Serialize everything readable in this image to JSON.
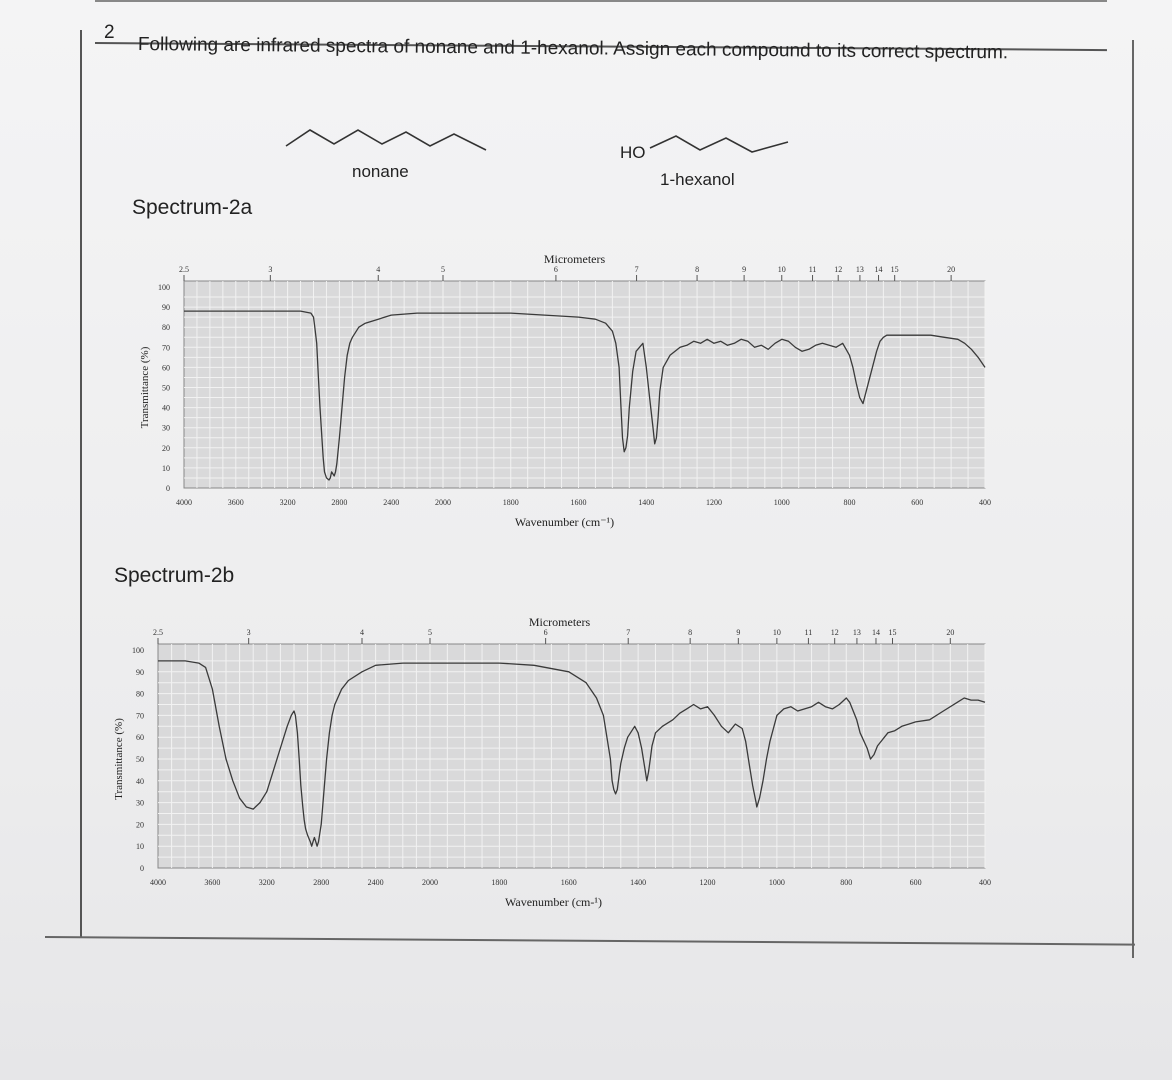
{
  "question": {
    "number": "2",
    "text": "Following are infrared spectra of nonane and 1-hexanol. Assign each compound to its correct spectrum."
  },
  "molecules": [
    {
      "name": "nonane",
      "label": "nonane",
      "structure": "skeletal zigzag chain"
    },
    {
      "name": "1-hexanol",
      "label": "1-hexanol",
      "group_label": "HO",
      "structure": "skeletal zigzag chain with OH"
    }
  ],
  "spectra_titles": [
    "Spectrum-2a",
    "Spectrum-2b"
  ],
  "chart_data": [
    {
      "type": "line",
      "title": "Spectrum-2a",
      "xlabel": "Wavenumber (cm⁻¹)",
      "ylabel": "Transmittance (%)",
      "top_axis_label": "Micrometers",
      "top_ticks": [
        "2.5",
        "3",
        "4",
        "5",
        "6",
        "7",
        "8",
        "9",
        "10",
        "11",
        "12",
        "13",
        "14",
        "15",
        "20"
      ],
      "xticks": [
        "4000",
        "3600",
        "3200",
        "2800",
        "2400",
        "2000",
        "1800",
        "1600",
        "1400",
        "1200",
        "1000",
        "800",
        "600",
        "400"
      ],
      "yticks": [
        "0",
        "10",
        "20",
        "30",
        "40",
        "50",
        "60",
        "70",
        "80",
        "90",
        "100"
      ],
      "ylim": [
        0,
        100
      ],
      "x_scale": "two-segment linear (4000-2000 and 2000-400)",
      "grid": true,
      "series": [
        {
          "x": [
            4000,
            3900,
            3700,
            3500,
            3300,
            3100,
            3020,
            3000,
            2990,
            2975,
            2962,
            2950,
            2935,
            2925,
            2915,
            2900,
            2880,
            2870,
            2860,
            2850,
            2840,
            2830,
            2820,
            2800,
            2780,
            2760,
            2740,
            2720,
            2700,
            2650,
            2600,
            2500,
            2400,
            2200,
            2000,
            1800,
            1700,
            1600,
            1550,
            1520,
            1500,
            1490,
            1480,
            1475,
            1470,
            1465,
            1460,
            1455,
            1450,
            1440,
            1430,
            1410,
            1400,
            1390,
            1380,
            1375,
            1370,
            1365,
            1360,
            1350,
            1330,
            1300,
            1280,
            1260,
            1240,
            1220,
            1200,
            1180,
            1160,
            1140,
            1120,
            1100,
            1080,
            1060,
            1040,
            1020,
            1000,
            980,
            960,
            940,
            920,
            900,
            880,
            860,
            840,
            820,
            800,
            790,
            780,
            770,
            760,
            740,
            720,
            710,
            700,
            690,
            680,
            660,
            640,
            620,
            600,
            560,
            520,
            480,
            460,
            440,
            420,
            400
          ],
          "y": [
            88,
            88,
            88,
            88,
            88,
            88,
            87,
            85,
            80,
            72,
            55,
            40,
            25,
            15,
            8,
            5,
            4,
            5,
            8,
            7,
            6,
            8,
            12,
            25,
            40,
            55,
            66,
            72,
            75,
            80,
            82,
            84,
            86,
            87,
            87,
            87,
            86,
            85,
            84,
            82,
            78,
            72,
            60,
            42,
            25,
            18,
            20,
            26,
            40,
            58,
            68,
            72,
            60,
            45,
            30,
            22,
            25,
            35,
            48,
            60,
            66,
            70,
            71,
            73,
            72,
            74,
            72,
            73,
            71,
            72,
            74,
            73,
            70,
            71,
            69,
            72,
            74,
            73,
            70,
            68,
            69,
            71,
            72,
            71,
            70,
            72,
            66,
            60,
            52,
            45,
            42,
            55,
            68,
            73,
            75,
            76,
            76,
            76,
            76,
            76,
            76,
            76,
            75,
            74,
            72,
            69,
            65,
            60
          ]
        }
      ]
    },
    {
      "type": "line",
      "title": "Spectrum-2b",
      "xlabel": "Wavenumber (cm-¹)",
      "ylabel": "Transmittance (%)",
      "top_axis_label": "Micrometers",
      "top_ticks": [
        "2.5",
        "3",
        "4",
        "5",
        "6",
        "7",
        "8",
        "9",
        "10",
        "11",
        "12",
        "13",
        "14",
        "15",
        "20"
      ],
      "xticks": [
        "4000",
        "3600",
        "3200",
        "2800",
        "2400",
        "2000",
        "1800",
        "1600",
        "1400",
        "1200",
        "1000",
        "800",
        "600",
        "400"
      ],
      "yticks": [
        "0",
        "10",
        "20",
        "30",
        "40",
        "50",
        "60",
        "70",
        "80",
        "90",
        "100"
      ],
      "ylim": [
        0,
        100
      ],
      "x_scale": "two-segment linear (4000-2000 and 2000-400)",
      "grid": true,
      "series": [
        {
          "x": [
            4000,
            3900,
            3800,
            3700,
            3650,
            3600,
            3550,
            3500,
            3450,
            3400,
            3350,
            3300,
            3250,
            3200,
            3150,
            3100,
            3050,
            3020,
            3000,
            2990,
            2975,
            2962,
            2950,
            2935,
            2925,
            2915,
            2900,
            2880,
            2870,
            2860,
            2850,
            2840,
            2830,
            2820,
            2800,
            2780,
            2760,
            2740,
            2720,
            2700,
            2650,
            2600,
            2500,
            2400,
            2200,
            2000,
            1800,
            1700,
            1600,
            1550,
            1520,
            1500,
            1490,
            1480,
            1475,
            1470,
            1465,
            1460,
            1455,
            1450,
            1440,
            1430,
            1410,
            1400,
            1390,
            1380,
            1375,
            1370,
            1365,
            1360,
            1350,
            1330,
            1300,
            1280,
            1260,
            1240,
            1220,
            1200,
            1180,
            1160,
            1140,
            1120,
            1100,
            1090,
            1080,
            1070,
            1060,
            1058,
            1050,
            1040,
            1030,
            1020,
            1010,
            1000,
            980,
            960,
            940,
            920,
            900,
            880,
            860,
            840,
            820,
            800,
            790,
            780,
            770,
            760,
            740,
            730,
            720,
            710,
            700,
            690,
            680,
            660,
            640,
            620,
            600,
            560,
            520,
            480,
            460,
            440,
            420,
            400
          ],
          "y": [
            95,
            95,
            95,
            94,
            92,
            82,
            65,
            50,
            40,
            32,
            28,
            27,
            30,
            35,
            45,
            55,
            65,
            70,
            72,
            70,
            62,
            50,
            38,
            28,
            22,
            18,
            15,
            12,
            10,
            12,
            14,
            12,
            10,
            12,
            20,
            35,
            50,
            62,
            70,
            75,
            82,
            86,
            90,
            93,
            94,
            94,
            94,
            93,
            90,
            85,
            78,
            70,
            60,
            50,
            40,
            36,
            34,
            36,
            42,
            48,
            55,
            60,
            65,
            62,
            55,
            45,
            40,
            44,
            50,
            56,
            62,
            65,
            68,
            71,
            73,
            75,
            73,
            74,
            70,
            65,
            62,
            66,
            64,
            58,
            48,
            38,
            30,
            28,
            32,
            40,
            50,
            58,
            64,
            70,
            73,
            74,
            72,
            73,
            74,
            76,
            74,
            73,
            75,
            78,
            76,
            72,
            68,
            62,
            55,
            50,
            52,
            56,
            58,
            60,
            62,
            63,
            65,
            66,
            67,
            68,
            72,
            76,
            78,
            77,
            77,
            76
          ]
        }
      ]
    }
  ]
}
